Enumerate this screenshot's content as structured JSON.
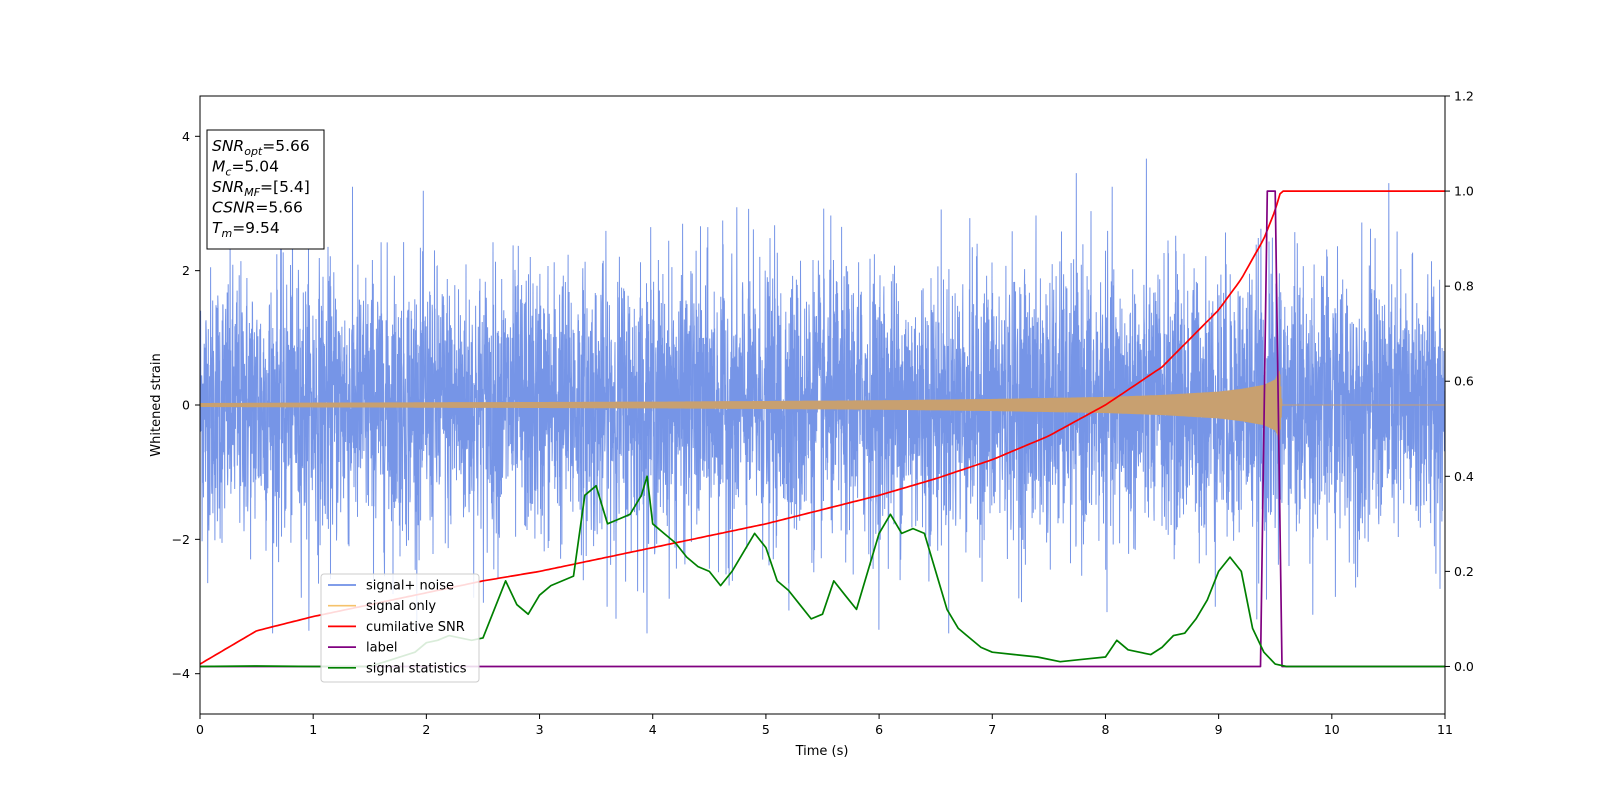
{
  "chart_data": {
    "type": "line",
    "title": "",
    "xlabel": "Time (s)",
    "ylabel_left": "Whitened strain",
    "ylabel_right": "",
    "xlim": [
      0,
      11
    ],
    "ylim_left": [
      -4.6,
      4.6
    ],
    "ylim_right": [
      -0.1,
      1.2
    ],
    "x_ticks": [
      0,
      1,
      2,
      3,
      4,
      5,
      6,
      7,
      8,
      9,
      10,
      11
    ],
    "y_left_ticks": [
      -4,
      -2,
      0,
      2,
      4
    ],
    "y_right_ticks": [
      0.0,
      0.2,
      0.4,
      0.6,
      0.8,
      1.0,
      1.2
    ],
    "grid": false,
    "legend_position": "lower-left",
    "annotation": {
      "lines": [
        {
          "symbol": "SNR",
          "sub": "opt",
          "value": "=5.66"
        },
        {
          "symbol": "M",
          "sub": "c",
          "value": "=5.04"
        },
        {
          "symbol": "SNR",
          "sub": "MF",
          "value": "=[5.4]"
        },
        {
          "symbol": "CSNR",
          "sub": "",
          "value": "=5.66"
        },
        {
          "symbol": "T",
          "sub": "m",
          "value": "=9.54"
        }
      ]
    },
    "series": [
      {
        "name": "signal+ noise",
        "axis": "left",
        "color": "#6f8fe6",
        "description_values": {
          "noise_std": 1.0,
          "amplitude_range": [
            -3.4,
            4.2
          ]
        }
      },
      {
        "name": "signal only",
        "axis": "left",
        "color": "#f5c26b",
        "envelope": {
          "x": [
            0,
            2,
            4,
            6,
            7,
            8,
            8.5,
            9,
            9.2,
            9.4,
            9.5,
            9.54,
            9.56,
            11
          ],
          "y": [
            0.03,
            0.04,
            0.05,
            0.07,
            0.09,
            0.12,
            0.15,
            0.2,
            0.24,
            0.3,
            0.38,
            0.52,
            0.0,
            0.0
          ]
        }
      },
      {
        "name": "cumilative SNR",
        "axis": "right",
        "color": "#ff0000",
        "x": [
          0,
          0.5,
          1,
          1.5,
          2,
          2.5,
          3,
          3.5,
          4,
          4.5,
          5,
          5.5,
          6,
          6.5,
          7,
          7.5,
          8,
          8.5,
          9,
          9.2,
          9.4,
          9.5,
          9.55,
          11
        ],
        "y": [
          0.005,
          0.075,
          0.105,
          0.13,
          0.155,
          0.18,
          0.2,
          0.225,
          0.25,
          0.275,
          0.3,
          0.33,
          0.36,
          0.395,
          0.435,
          0.485,
          0.55,
          0.63,
          0.75,
          0.815,
          0.9,
          0.96,
          1.0,
          1.0
        ]
      },
      {
        "name": "label",
        "axis": "right",
        "color": "#800080",
        "x": [
          0,
          9.37,
          9.43,
          9.5,
          9.56,
          11
        ],
        "y": [
          0,
          0,
          1,
          1,
          0,
          0
        ]
      },
      {
        "name": "signal statistics",
        "axis": "right",
        "color": "#008000",
        "x": [
          0,
          0.5,
          1,
          1.5,
          1.9,
          2.0,
          2.1,
          2.2,
          2.3,
          2.4,
          2.5,
          2.6,
          2.7,
          2.8,
          2.9,
          3.0,
          3.1,
          3.2,
          3.3,
          3.4,
          3.5,
          3.6,
          3.7,
          3.8,
          3.9,
          3.95,
          4.0,
          4.1,
          4.2,
          4.3,
          4.4,
          4.5,
          4.6,
          4.7,
          4.8,
          4.9,
          5.0,
          5.1,
          5.2,
          5.3,
          5.4,
          5.5,
          5.6,
          5.7,
          5.8,
          5.9,
          6.0,
          6.1,
          6.2,
          6.3,
          6.4,
          6.5,
          6.6,
          6.7,
          6.8,
          6.9,
          7.0,
          7.2,
          7.4,
          7.6,
          7.8,
          8.0,
          8.1,
          8.2,
          8.3,
          8.4,
          8.5,
          8.6,
          8.7,
          8.8,
          8.9,
          9.0,
          9.1,
          9.2,
          9.3,
          9.4,
          9.5,
          9.6,
          10,
          11
        ],
        "y": [
          0.0,
          0.001,
          0.0,
          0.0,
          0.03,
          0.05,
          0.055,
          0.065,
          0.06,
          0.055,
          0.06,
          0.12,
          0.18,
          0.13,
          0.11,
          0.15,
          0.17,
          0.18,
          0.19,
          0.36,
          0.38,
          0.3,
          0.31,
          0.32,
          0.36,
          0.4,
          0.3,
          0.28,
          0.26,
          0.23,
          0.21,
          0.2,
          0.17,
          0.2,
          0.24,
          0.28,
          0.25,
          0.18,
          0.16,
          0.13,
          0.1,
          0.11,
          0.18,
          0.15,
          0.12,
          0.2,
          0.28,
          0.32,
          0.28,
          0.29,
          0.28,
          0.2,
          0.12,
          0.08,
          0.06,
          0.04,
          0.03,
          0.025,
          0.02,
          0.01,
          0.015,
          0.02,
          0.055,
          0.035,
          0.03,
          0.025,
          0.04,
          0.065,
          0.07,
          0.1,
          0.14,
          0.2,
          0.23,
          0.2,
          0.08,
          0.03,
          0.005,
          0.0,
          0.0,
          0.0
        ]
      }
    ]
  }
}
